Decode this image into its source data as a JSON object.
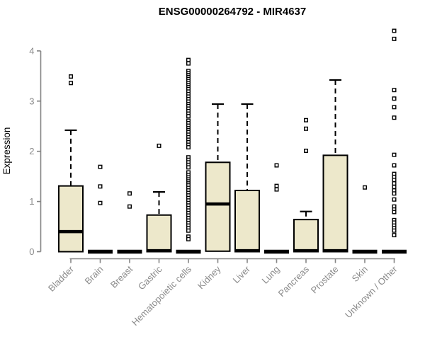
{
  "colors": {
    "background": "#ffffff",
    "box_fill": "#EDE8CB",
    "box_stroke": "#000000",
    "median": "#000000",
    "whisker": "#000000",
    "outlier_stroke": "#000000",
    "outlier_fill": "#ffffff",
    "axis": "#858585",
    "tick_label": "#8a8a8a",
    "title": "#000000"
  },
  "chart_data": {
    "type": "boxplot",
    "title": "ENSG00000264792 - MIR4637",
    "ylabel": "Expression",
    "xlabel": "",
    "ylim": [
      0,
      4.45
    ],
    "yticks": [
      0,
      1,
      2,
      3,
      4
    ],
    "grid": false,
    "legend": "none",
    "categories": [
      "Bladder",
      "Brain",
      "Breast",
      "Gastric",
      "Hematopoietic cells",
      "Kidney",
      "Liver",
      "Lung",
      "Pancreas",
      "Prostate",
      "Skin",
      "Unknown / Other"
    ],
    "boxes": [
      {
        "label": "Bladder",
        "q1": 0,
        "median": 0.4,
        "q3": 1.31,
        "whisker_low": 0,
        "whisker_high": 2.42,
        "outliers": [
          3.49,
          3.36
        ]
      },
      {
        "label": "Brain",
        "q1": 0,
        "median": 0,
        "q3": 0,
        "whisker_low": 0,
        "whisker_high": 0,
        "outliers": [
          1.69,
          1.3,
          0.97
        ]
      },
      {
        "label": "Breast",
        "q1": 0,
        "median": 0,
        "q3": 0,
        "whisker_low": 0,
        "whisker_high": 0,
        "outliers": [
          1.16,
          0.9
        ]
      },
      {
        "label": "Gastric",
        "q1": 0,
        "median": 0.02,
        "q3": 0.73,
        "whisker_low": 0,
        "whisker_high": 1.19,
        "outliers": [
          2.11
        ]
      },
      {
        "label": "Hematopoietic cells",
        "q1": 0,
        "median": 0,
        "q3": 0,
        "whisker_low": 0,
        "whisker_high": 0,
        "outliers": [
          3.82,
          3.75,
          3.6,
          3.56,
          3.52,
          3.48,
          3.44,
          3.4,
          3.36,
          3.32,
          3.28,
          3.24,
          3.19,
          3.14,
          3.09,
          3.04,
          2.99,
          2.94,
          2.9,
          2.85,
          2.8,
          2.75,
          2.7,
          2.61,
          2.56,
          2.51,
          2.46,
          2.42,
          2.38,
          2.33,
          2.28,
          2.23,
          2.18,
          2.13,
          2.08,
          1.88,
          1.83,
          1.78,
          1.73,
          1.68,
          1.58,
          1.53,
          1.48,
          1.44,
          1.4,
          1.36,
          1.32,
          1.27,
          1.22,
          1.17,
          1.12,
          1.07,
          1.02,
          0.97,
          0.92,
          0.87,
          0.82,
          0.77,
          0.72,
          0.67,
          0.62,
          0.57,
          0.52,
          0.47,
          0.42,
          0.3,
          0.25
        ]
      },
      {
        "label": "Kidney",
        "q1": 0.01,
        "median": 0.95,
        "q3": 1.78,
        "whisker_low": 0.01,
        "whisker_high": 2.94,
        "outliers": []
      },
      {
        "label": "Liver",
        "q1": 0,
        "median": 0.02,
        "q3": 1.22,
        "whisker_low": 0,
        "whisker_high": 2.94,
        "outliers": []
      },
      {
        "label": "Lung",
        "q1": 0,
        "median": 0,
        "q3": 0,
        "whisker_low": 0,
        "whisker_high": 0,
        "outliers": [
          1.72,
          1.31,
          1.24
        ]
      },
      {
        "label": "Pancreas",
        "q1": 0,
        "median": 0.02,
        "q3": 0.64,
        "whisker_low": 0,
        "whisker_high": 0.8,
        "outliers": [
          2.62,
          2.45,
          2.01
        ]
      },
      {
        "label": "Prostate",
        "q1": 0,
        "median": 0.02,
        "q3": 1.92,
        "whisker_low": 0,
        "whisker_high": 3.42,
        "outliers": []
      },
      {
        "label": "Skin",
        "q1": 0,
        "median": 0,
        "q3": 0,
        "whisker_low": 0,
        "whisker_high": 0,
        "outliers": [
          1.28
        ]
      },
      {
        "label": "Unknown / Other",
        "q1": 0,
        "median": 0,
        "q3": 0,
        "whisker_low": 0,
        "whisker_high": 0,
        "outliers": [
          4.4,
          4.24,
          3.22,
          3.05,
          2.88,
          2.67,
          1.93,
          1.72,
          1.55,
          1.49,
          1.43,
          1.36,
          1.29,
          1.22,
          1.16,
          1.04,
          0.9,
          0.84,
          0.79,
          0.63,
          0.58,
          0.52,
          0.47,
          0.42,
          0.33
        ]
      }
    ]
  }
}
